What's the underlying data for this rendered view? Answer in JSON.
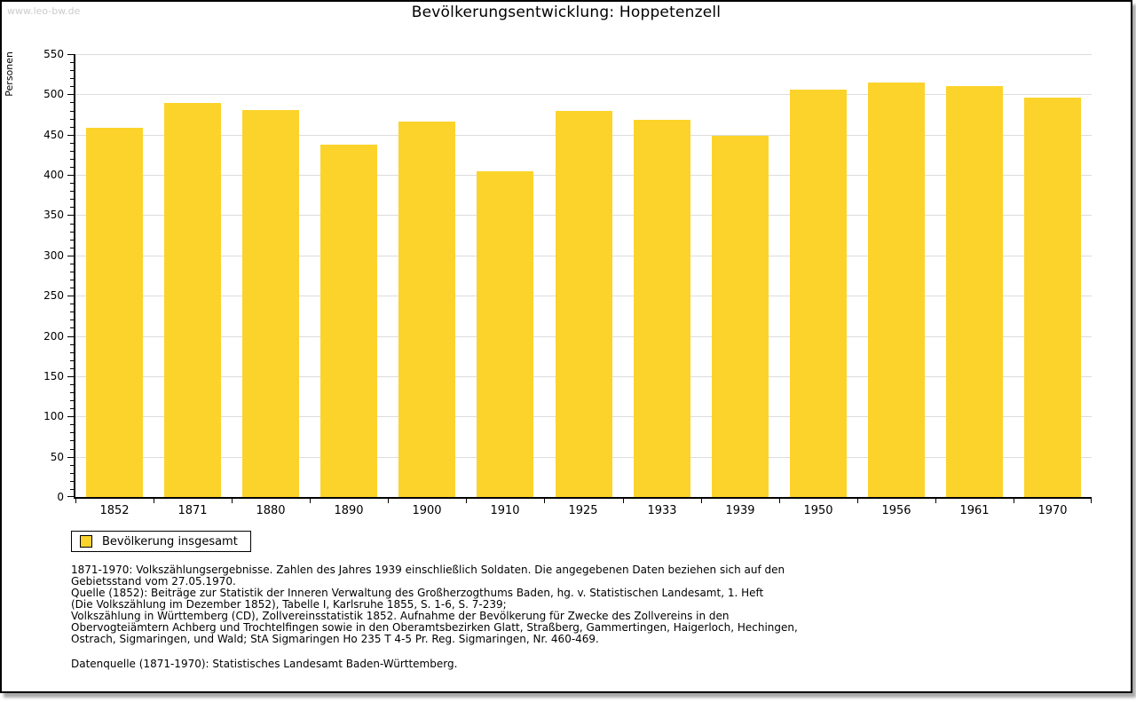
{
  "watermark": "www.leo-bw.de",
  "title": "Bevölkerungsentwicklung: Hoppetenzell",
  "legend": {
    "label": "Bevölkerung insgesamt"
  },
  "chart_data": {
    "type": "bar",
    "title": "Bevölkerungsentwicklung: Hoppetenzell",
    "xlabel": "",
    "ylabel": "Personen",
    "categories": [
      "1852",
      "1871",
      "1880",
      "1890",
      "1900",
      "1910",
      "1925",
      "1933",
      "1939",
      "1950",
      "1956",
      "1961",
      "1970"
    ],
    "series": [
      {
        "name": "Bevölkerung insgesamt",
        "values": [
          458,
          489,
          481,
          438,
          466,
          404,
          480,
          468,
          449,
          506,
          515,
          510,
          496
        ]
      }
    ],
    "ylim": [
      0,
      550
    ],
    "ytick_step": 50,
    "y_minor_step": 10,
    "grid": true,
    "legend_position": "bottom-left"
  },
  "colors": {
    "bar": "#fcd32b",
    "grid": "#dcdcdc",
    "axis": "#000000",
    "watermark": "#cccccc"
  },
  "footnotes": [
    "1871-1970: Volkszählungsergebnisse. Zahlen des Jahres 1939 einschließlich Soldaten. Die angegebenen Daten beziehen sich auf den",
    "Gebietsstand vom 27.05.1970.",
    "Quelle (1852): Beiträge zur Statistik der Inneren Verwaltung des Großherzogthums Baden, hg. v. Statistischen Landesamt, 1. Heft",
    "(Die Volkszählung im Dezember 1852), Tabelle I, Karlsruhe 1855, S. 1-6, S. 7-239;",
    "Volkszählung in Württemberg (CD), Zollvereinsstatistik 1852. Aufnahme der Bevölkerung für Zwecke des Zollvereins in den",
    "Obervogteiämtern Achberg und Trochtelfingen sowie in den Oberamtsbezirken Glatt, Straßberg, Gammertingen, Haigerloch, Hechingen,",
    "Ostrach, Sigmaringen, und Wald; StA Sigmaringen Ho 235 T 4-5 Pr. Reg. Sigmaringen, Nr. 460-469."
  ],
  "datasource": "Datenquelle (1871-1970): Statistisches Landesamt Baden-Württemberg."
}
